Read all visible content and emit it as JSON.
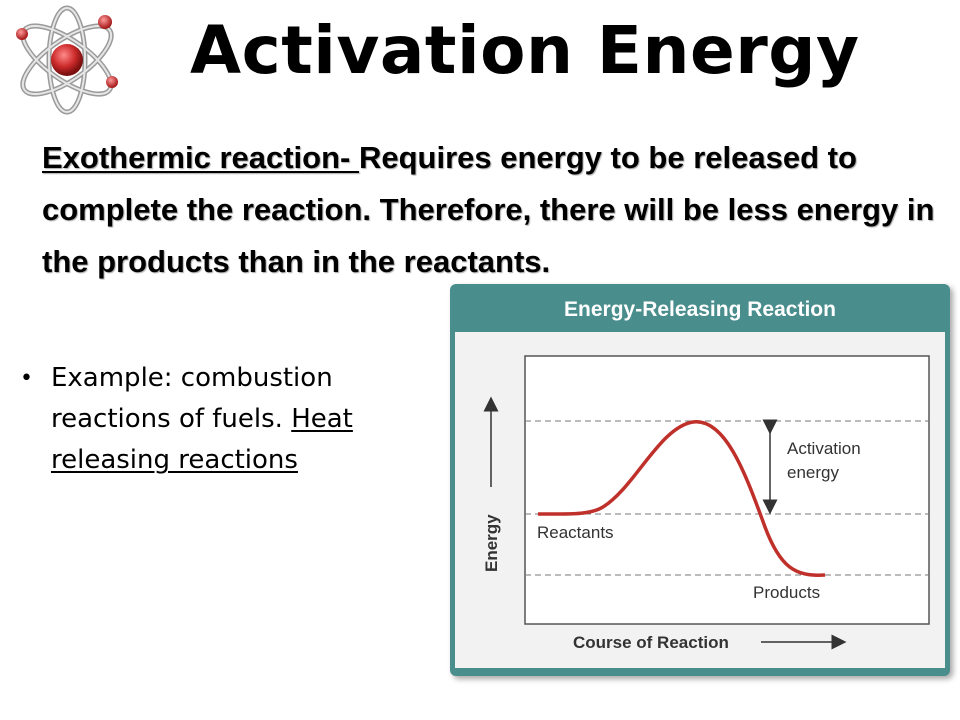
{
  "slide": {
    "title": "Activation Energy",
    "definition": {
      "term": "Exothermic reaction- ",
      "text": "Requires energy to be released  to complete the reaction. Therefore, there will be less energy in the products than in the reactants."
    },
    "bullet": {
      "text": "Example: combustion reactions of fuels. ",
      "underlined": "Heat releasing reactions"
    }
  },
  "figure": {
    "title": "Energy-Releasing Reaction",
    "y_axis_label": "Energy",
    "x_axis_label": "Course of Reaction",
    "labels": {
      "reactants": "Reactants",
      "products": "Products",
      "activation_line1": "Activation",
      "activation_line2": "energy"
    }
  },
  "colors": {
    "panel": "#4a8d8d",
    "curve": "#c0302b",
    "logo_red": "#cc2a2a"
  }
}
